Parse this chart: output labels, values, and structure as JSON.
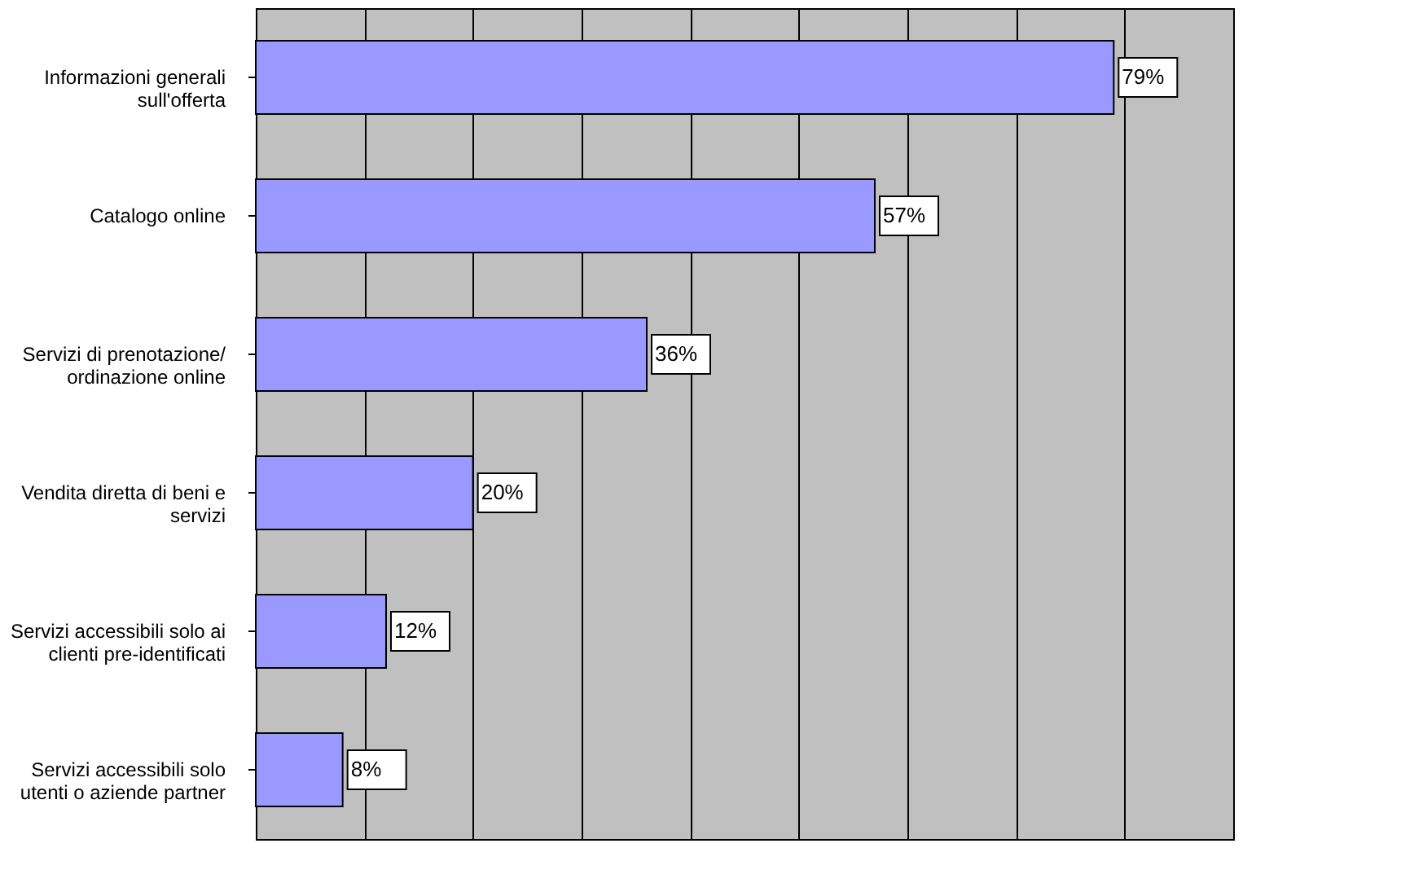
{
  "chart_data": {
    "type": "bar",
    "orientation": "horizontal",
    "categories": [
      "Informazioni generali sull'offerta",
      "Catalogo online",
      "Servizi di prenotazione/ ordinazione online",
      "Vendita diretta di beni e servizi",
      "Servizi accessibili solo ai clienti pre-identificati",
      "Servizi accessibili solo utenti o aziende partner"
    ],
    "values": [
      79,
      57,
      36,
      20,
      12,
      8
    ],
    "value_labels": [
      "79%",
      "57%",
      "36%",
      "20%",
      "12%",
      "8%"
    ],
    "color": "#9999ff",
    "xlim": [
      0,
      90
    ],
    "xticks": [
      {
        "value": 0,
        "label": null
      },
      {
        "value": 10,
        "label": null
      },
      {
        "value": 20,
        "label": null
      },
      {
        "value": 30,
        "label": null
      },
      {
        "value": 40,
        "label": null
      },
      {
        "value": 50,
        "label": null
      },
      {
        "value": 60,
        "label": null
      },
      {
        "value": 70,
        "label": null
      },
      {
        "value": 80,
        "label": null
      },
      {
        "value": 90,
        "label": null
      }
    ],
    "grid": "x",
    "tick_labels": "y"
  }
}
